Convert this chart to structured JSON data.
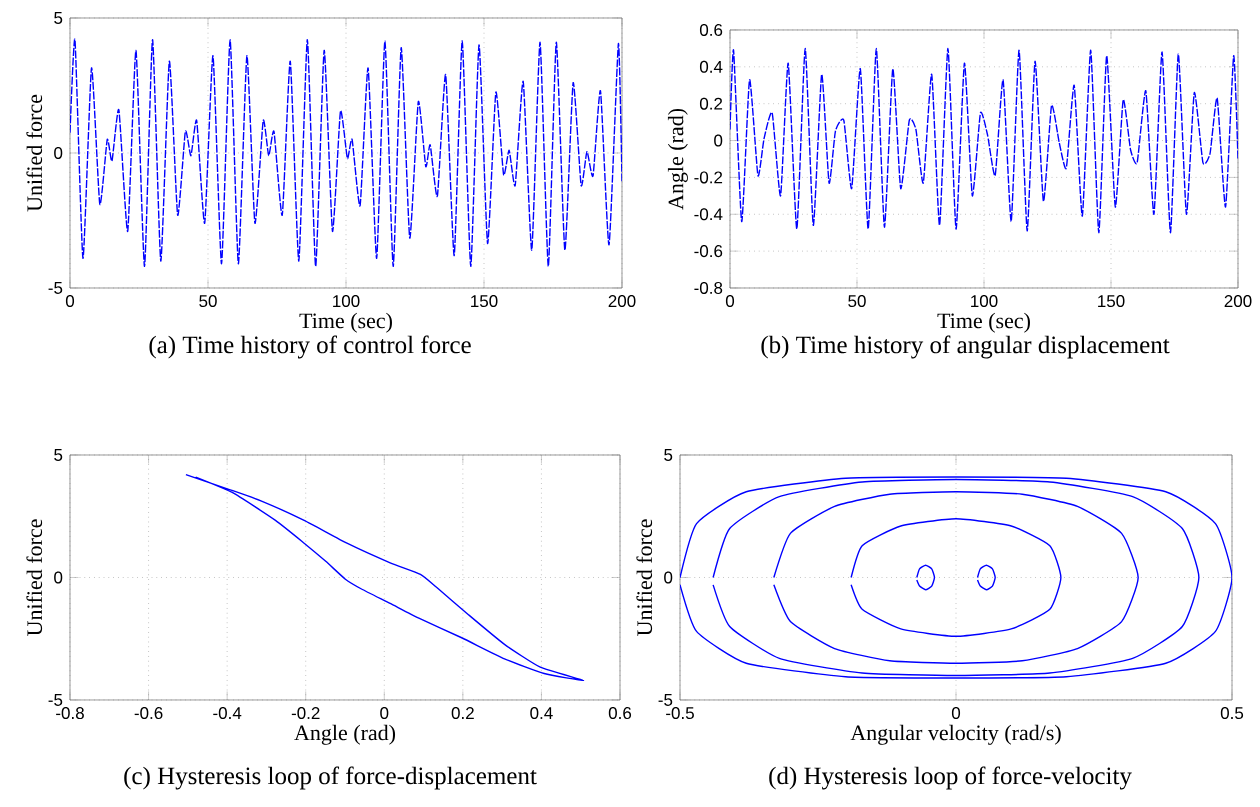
{
  "chart_data": [
    {
      "type": "line",
      "xlabel": "Time (sec)",
      "ylabel": "Unified force",
      "annotations": [
        "(a) Time history of control force"
      ],
      "xlim": [
        0,
        200
      ],
      "ylim": [
        -5,
        5
      ],
      "xticks": [
        0,
        50,
        100,
        150,
        200
      ],
      "yticks": [
        -5,
        0,
        5
      ],
      "grid": true,
      "line_style": "dashed",
      "x": [
        0,
        1.8,
        4.7,
        7.8,
        10.8,
        13.5,
        15.2,
        17.7,
        20.9,
        23.9,
        27.0,
        29.9,
        32.9,
        36.0,
        39.0,
        41.8,
        43.8,
        45.9,
        48.8,
        51.8,
        54.9,
        58.0,
        61.0,
        64.1,
        67.0,
        70.0,
        72.0,
        73.9,
        76.9,
        79.8,
        82.9,
        86.0,
        89.0,
        92.1,
        95.1,
        98.0,
        100.5,
        102.2,
        105.1,
        108.0,
        111.1,
        114.1,
        117.1,
        120.0,
        123.1,
        126.2,
        128.9,
        130.5,
        133.1,
        136.1,
        139.2,
        142.1,
        145.2,
        148.2,
        151.3,
        154.3,
        157.1,
        159.1,
        161.3,
        164.2,
        167.3,
        170.3,
        173.3,
        176.2,
        179.3,
        182.3,
        185.2,
        187.3,
        189.5,
        192.2,
        195.3,
        198.7,
        200
      ],
      "series": [
        {
          "color": "#0000ff",
          "values": [
            0.75,
            4.2,
            -3.9,
            3.15,
            -1.9,
            0.5,
            -0.3,
            1.6,
            -2.9,
            3.8,
            -4.2,
            4.2,
            -4.0,
            3.4,
            -2.3,
            0.8,
            -0.1,
            1.2,
            -2.6,
            3.6,
            -4.1,
            4.2,
            -4.1,
            3.6,
            -2.6,
            1.2,
            -0.1,
            0.8,
            -2.3,
            3.4,
            -4.0,
            4.2,
            -4.2,
            3.8,
            -2.9,
            1.55,
            -0.2,
            0.5,
            -1.95,
            3.15,
            -3.9,
            4.15,
            -4.2,
            3.9,
            -3.15,
            1.9,
            -0.5,
            0.3,
            -1.6,
            2.9,
            -3.8,
            4.15,
            -4.2,
            4.0,
            -3.35,
            2.25,
            -0.8,
            0.1,
            -1.2,
            2.65,
            -3.6,
            4.1,
            -4.2,
            4.1,
            -3.6,
            2.6,
            -1.2,
            0.05,
            -0.85,
            2.3,
            -3.4,
            4.05,
            -1.05
          ]
        }
      ]
    },
    {
      "type": "line",
      "xlabel": "Time (sec)",
      "ylabel": "Angle (rad)",
      "annotations": [
        "(b) Time history of angular displacement"
      ],
      "xlim": [
        0,
        200
      ],
      "ylim": [
        -0.8,
        0.6
      ],
      "xticks": [
        0,
        50,
        100,
        150,
        200
      ],
      "yticks": [
        -0.8,
        -0.6,
        -0.4,
        -0.2,
        0,
        0.2,
        0.4,
        0.6
      ],
      "grid": true,
      "line_style": "dashed",
      "x": [
        0,
        1.4,
        4.6,
        7.7,
        11.0,
        13.4,
        16.6,
        19.9,
        22.9,
        26.3,
        29.6,
        32.8,
        36.1,
        39.0,
        41.5,
        44.8,
        47.9,
        51.3,
        54.4,
        57.6,
        60.8,
        64.1,
        67.2,
        70.6,
        73.2,
        76.1,
        79.4,
        82.5,
        85.8,
        89.0,
        92.3,
        95.4,
        98.6,
        101.4,
        104.4,
        107.5,
        110.7,
        113.8,
        117.0,
        120.1,
        123.4,
        126.6,
        129.6,
        132.4,
        135.5,
        138.7,
        142.0,
        145.2,
        148.3,
        151.7,
        154.8,
        157.7,
        160.3,
        163.7,
        166.9,
        170.1,
        173.4,
        176.5,
        179.7,
        182.8,
        186.2,
        189.0,
        191.8,
        195.1,
        198.3,
        200
      ],
      "series": [
        {
          "color": "#0000ff",
          "values": [
            0.06,
            0.49,
            -0.44,
            0.33,
            -0.19,
            0.01,
            0.15,
            -0.3,
            0.42,
            -0.48,
            0.5,
            -0.46,
            0.36,
            -0.23,
            0.05,
            0.11,
            -0.26,
            0.39,
            -0.48,
            0.5,
            -0.47,
            0.39,
            -0.26,
            0.11,
            0.06,
            -0.23,
            0.36,
            -0.46,
            0.5,
            -0.48,
            0.42,
            -0.3,
            0.15,
            0.03,
            -0.19,
            0.33,
            -0.44,
            0.49,
            -0.49,
            0.43,
            -0.33,
            0.19,
            -0.01,
            -0.15,
            0.3,
            -0.41,
            0.49,
            -0.5,
            0.46,
            -0.36,
            0.22,
            -0.05,
            -0.12,
            0.27,
            -0.4,
            0.48,
            -0.5,
            0.47,
            -0.4,
            0.26,
            -0.12,
            -0.07,
            0.23,
            -0.36,
            0.46,
            -0.1
          ]
        }
      ]
    },
    {
      "type": "line",
      "xlabel": "Angle (rad)",
      "ylabel": "Unified force",
      "annotations": [
        "(c) Hysteresis loop of force-displacement"
      ],
      "xlim": [
        -0.8,
        0.6
      ],
      "ylim": [
        -5,
        5
      ],
      "xticks": [
        -0.8,
        -0.6,
        -0.4,
        -0.2,
        0,
        0.2,
        0.4,
        0.6
      ],
      "yticks": [
        -5,
        0,
        5
      ],
      "grid": true,
      "series": [
        {
          "color": "#0000ff",
          "x": [
            -0.505,
            -0.396,
            -0.314,
            -0.204,
            -0.095,
            0.015,
            0.092,
            0.133,
            0.215,
            0.306,
            0.397,
            0.507,
            0.407,
            0.306,
            0.197,
            0.088,
            0.015,
            -0.058,
            -0.099,
            -0.149,
            -0.204,
            -0.277,
            -0.387,
            -0.48
          ],
          "values": [
            4.2,
            3.6,
            3.13,
            2.33,
            1.4,
            0.6,
            0.13,
            -0.4,
            -1.53,
            -2.73,
            -3.66,
            -4.2,
            -3.92,
            -3.32,
            -2.46,
            -1.66,
            -1.06,
            -0.47,
            -0.07,
            0.66,
            1.4,
            2.33,
            3.47,
            4.1
          ]
        }
      ]
    },
    {
      "type": "line",
      "xlabel": "Angular velocity (rad/s)",
      "ylabel": "Unified force",
      "annotations": [
        "(d) Hysteresis loop of force-velocity"
      ],
      "xlim": [
        -0.5,
        0.5
      ],
      "ylim": [
        -5,
        5
      ],
      "xticks": [
        -0.5,
        0,
        0.5
      ],
      "yticks": [
        -5,
        0,
        5
      ],
      "grid": true,
      "series": [
        {
          "color": "#0000ff",
          "x": [
            -0.5,
            -0.47,
            -0.38,
            -0.2,
            0,
            0.2,
            0.38,
            0.47,
            0.5,
            0.47,
            0.38,
            0.2,
            0,
            -0.2,
            -0.38,
            -0.47,
            -0.5
          ],
          "values": [
            0,
            2.2,
            3.5,
            4.05,
            4.1,
            4.05,
            3.5,
            2.2,
            0,
            -2.2,
            -3.5,
            -4.05,
            -4.1,
            -4.05,
            -3.5,
            -2.2,
            -0.3
          ]
        },
        {
          "color": "#0000ff",
          "x": [
            -0.44,
            -0.41,
            -0.32,
            -0.17,
            0,
            0.17,
            0.32,
            0.41,
            0.44,
            0.41,
            0.32,
            0.17,
            0,
            -0.17,
            -0.32,
            -0.41,
            -0.44
          ],
          "values": [
            0,
            2.0,
            3.3,
            3.9,
            4.0,
            3.9,
            3.3,
            2.0,
            0,
            -2.0,
            -3.3,
            -3.9,
            -4.0,
            -3.9,
            -3.3,
            -2.0,
            -0.3
          ]
        },
        {
          "color": "#0000ff",
          "x": [
            -0.33,
            -0.3,
            -0.22,
            -0.12,
            0,
            0.12,
            0.22,
            0.3,
            0.33,
            0.3,
            0.22,
            0.12,
            0,
            -0.12,
            -0.22,
            -0.3,
            -0.33
          ],
          "values": [
            0,
            1.8,
            2.9,
            3.4,
            3.5,
            3.4,
            2.9,
            1.8,
            0,
            -1.8,
            -2.9,
            -3.4,
            -3.5,
            -3.4,
            -2.9,
            -1.8,
            -0.3
          ]
        },
        {
          "color": "#0000ff",
          "x": [
            -0.19,
            -0.17,
            -0.1,
            0,
            0.1,
            0.17,
            0.19,
            0.17,
            0.1,
            0,
            -0.1,
            -0.17,
            -0.19
          ],
          "values": [
            0,
            1.3,
            2.1,
            2.4,
            2.1,
            1.3,
            0,
            -1.3,
            -2.1,
            -2.4,
            -2.1,
            -1.3,
            -0.3
          ]
        },
        {
          "color": "#0000ff",
          "x": [
            -0.071,
            -0.066,
            -0.055,
            -0.044,
            -0.039,
            -0.044,
            -0.055,
            -0.066,
            -0.071
          ],
          "values": [
            0,
            0.35,
            0.5,
            0.35,
            0,
            -0.35,
            -0.5,
            -0.35,
            -0.1
          ]
        },
        {
          "color": "#0000ff",
          "x": [
            0.039,
            0.044,
            0.055,
            0.066,
            0.071,
            0.066,
            0.055,
            0.044,
            0.039
          ],
          "values": [
            0,
            0.35,
            0.5,
            0.35,
            0,
            -0.35,
            -0.5,
            -0.35,
            -0.1
          ]
        }
      ]
    }
  ]
}
